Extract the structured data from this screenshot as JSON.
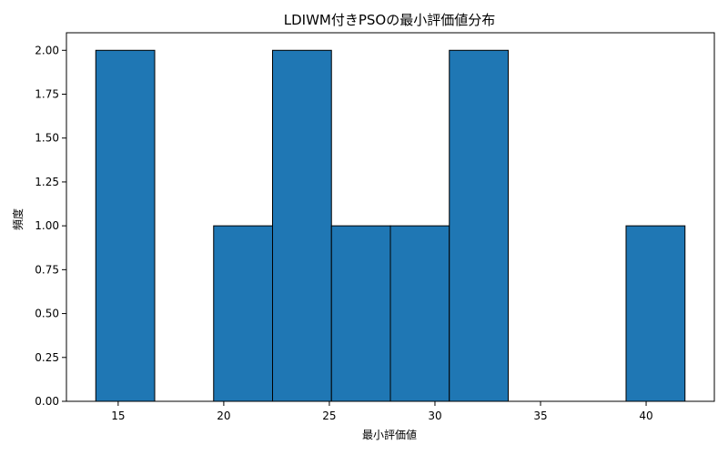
{
  "chart_data": {
    "type": "bar",
    "subtype": "histogram",
    "title": "LDIWM付きPSOの最小評価値分布",
    "xlabel": "最小評価値",
    "ylabel": "頻度",
    "bin_edges": [
      13.94,
      16.73,
      19.52,
      22.31,
      25.1,
      27.89,
      30.68,
      33.47,
      36.26,
      39.05,
      41.84
    ],
    "counts": [
      2,
      0,
      1,
      2,
      1,
      1,
      2,
      0,
      0,
      1
    ],
    "xlim": [
      12.55,
      43.23
    ],
    "ylim": [
      0,
      2.1
    ],
    "xticks": [
      15,
      20,
      25,
      30,
      35,
      40
    ],
    "yticks": [
      0.0,
      0.25,
      0.5,
      0.75,
      1.0,
      1.25,
      1.5,
      1.75,
      2.0
    ],
    "ytick_labels": [
      "0.00",
      "0.25",
      "0.50",
      "0.75",
      "1.00",
      "1.25",
      "1.50",
      "1.75",
      "2.00"
    ],
    "grid": false,
    "bar_color": "#1f77b4",
    "edge_color": "#000000"
  }
}
